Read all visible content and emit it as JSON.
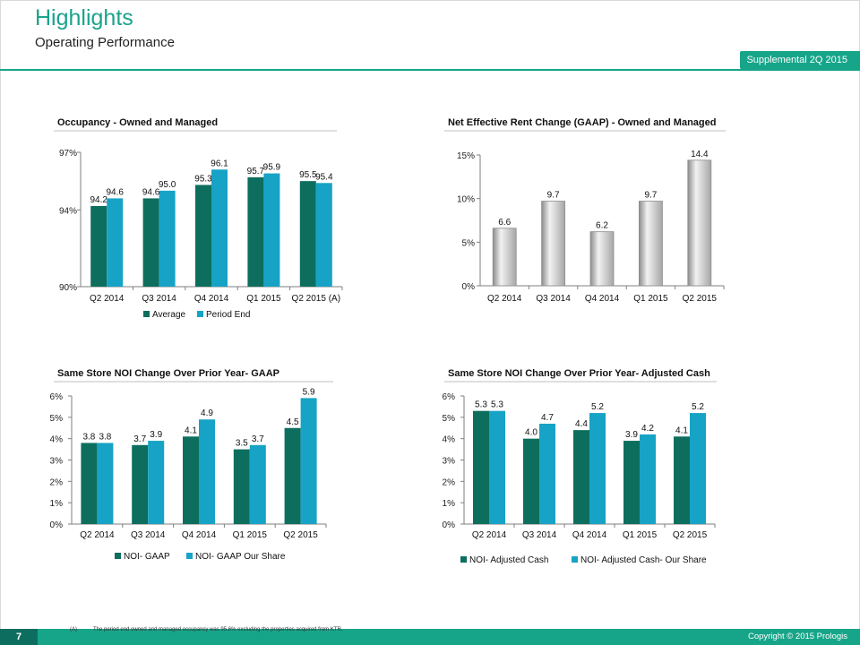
{
  "header": {
    "title": "Highlights",
    "subtitle": "Operating Performance",
    "supplemental_label": "Supplemental  2Q 2015"
  },
  "footer": {
    "page_number": "7",
    "footnote_marker": "(A)",
    "footnote_text": "The period end owned and managed occupancy was 95.6% excluding the properties acquired from KTR.",
    "copyright": "Copyright © 2015 Prologis"
  },
  "colors": {
    "brand": "#17a589",
    "average": "#0d6e5e",
    "period_end": "#16a3c6",
    "noi_dark": "#0d6e5e",
    "noi_light": "#16a3c6",
    "grey_bar": "#bfbfbf"
  },
  "chart_data": [
    {
      "type": "bar",
      "title": "Occupancy  - Owned and Managed",
      "categories": [
        "Q2 2014",
        "Q3 2014",
        "Q4 2014",
        "Q1 2015",
        "Q2 2015 (A)"
      ],
      "series": [
        {
          "name": "Average",
          "values": [
            94.2,
            94.6,
            95.3,
            95.7,
            95.5
          ]
        },
        {
          "name": "Period End",
          "values": [
            94.6,
            95.0,
            96.1,
            95.9,
            95.4
          ]
        }
      ],
      "ylim": [
        90,
        97
      ],
      "yticks": [
        "90%",
        "94%",
        "97%"
      ],
      "legend": "bottom",
      "grid": false
    },
    {
      "type": "bar",
      "title": "Net Effective Rent Change (GAAP) - Owned and Managed",
      "categories": [
        "Q2 2014",
        "Q3 2014",
        "Q4 2014",
        "Q1 2015",
        "Q2 2015"
      ],
      "series": [
        {
          "values": [
            6.6,
            9.7,
            6.2,
            9.7,
            14.4
          ]
        }
      ],
      "ylim": [
        0,
        15
      ],
      "yticks": [
        "0%",
        "5%",
        "10%",
        "15%"
      ],
      "grid": false
    },
    {
      "type": "bar",
      "title": "Same Store NOI  Change Over Prior Year- GAAP",
      "categories": [
        "Q2 2014",
        "Q3 2014",
        "Q4 2014",
        "Q1 2015",
        "Q2 2015"
      ],
      "series": [
        {
          "name": "NOI- GAAP",
          "values": [
            3.8,
            3.7,
            4.1,
            3.5,
            4.5
          ]
        },
        {
          "name": "NOI- GAAP Our Share",
          "values": [
            3.8,
            3.9,
            4.9,
            3.7,
            5.9
          ]
        }
      ],
      "ylim": [
        0,
        6
      ],
      "yticks": [
        "0%",
        "1%",
        "2%",
        "3%",
        "4%",
        "5%",
        "6%"
      ],
      "legend": "bottom",
      "grid": false
    },
    {
      "type": "bar",
      "title": "Same Store NOI  Change Over Prior Year- Adjusted Cash",
      "categories": [
        "Q2 2014",
        "Q3 2014",
        "Q4 2014",
        "Q1 2015",
        "Q2 2015"
      ],
      "series": [
        {
          "name": "NOI- Adjusted Cash",
          "values": [
            5.3,
            4.0,
            4.4,
            3.9,
            4.1
          ]
        },
        {
          "name": "NOI- Adjusted Cash- Our Share",
          "values": [
            5.3,
            4.7,
            5.2,
            4.2,
            5.2
          ]
        }
      ],
      "ylim": [
        0,
        6
      ],
      "yticks": [
        "0%",
        "1%",
        "2%",
        "3%",
        "4%",
        "5%",
        "6%"
      ],
      "legend": "bottom",
      "grid": false
    }
  ]
}
